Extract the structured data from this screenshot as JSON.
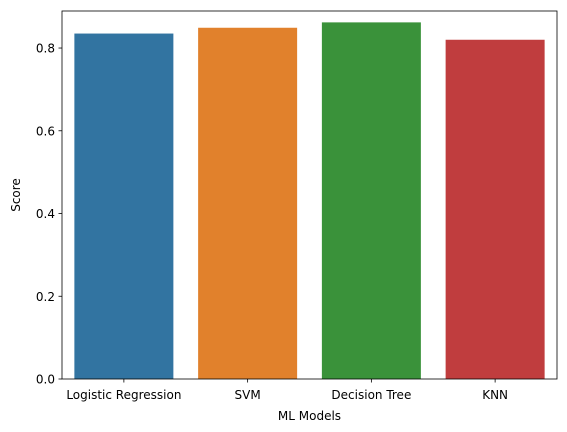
{
  "chart_data": {
    "type": "bar",
    "categories": [
      "Logistic Regression",
      "SVM",
      "Decision Tree",
      "KNN"
    ],
    "values": [
      0.835,
      0.849,
      0.862,
      0.82
    ],
    "colors": [
      "#3274a1",
      "#e1812c",
      "#3a923a",
      "#c03d3e"
    ],
    "xlabel": "ML Models",
    "ylabel": "Score",
    "ylim": [
      0,
      0.8895
    ],
    "yticks": [
      0.0,
      0.2,
      0.4,
      0.6,
      0.8
    ],
    "ytick_labels": [
      "0.0",
      "0.2",
      "0.4",
      "0.6",
      "0.8"
    ],
    "grid": false,
    "legend": "none"
  }
}
